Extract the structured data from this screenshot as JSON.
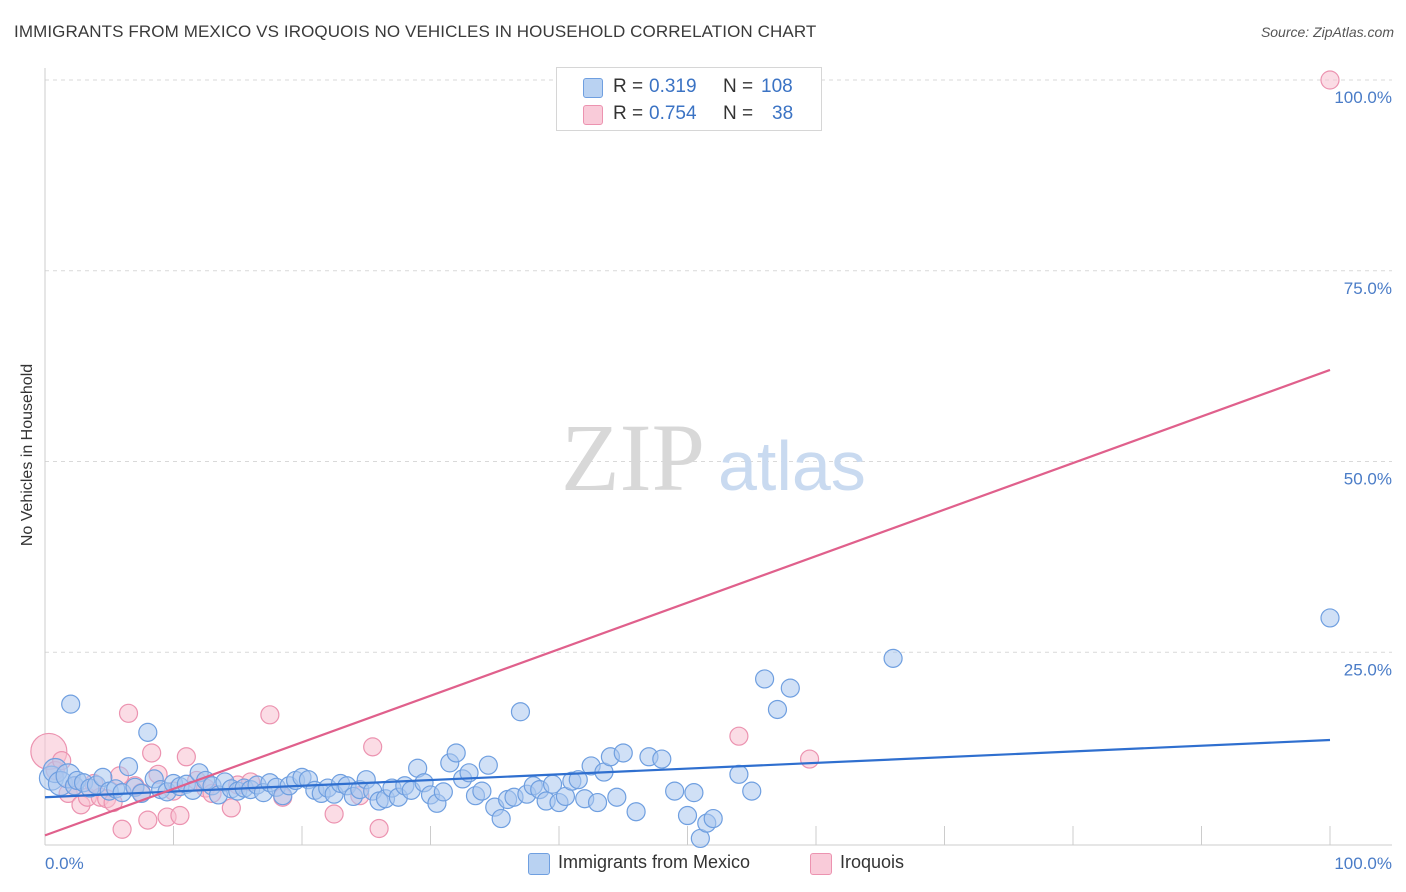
{
  "title": "IMMIGRANTS FROM MEXICO VS IROQUOIS NO VEHICLES IN HOUSEHOLD CORRELATION CHART",
  "source": "Source: ZipAtlas.com",
  "watermark": {
    "zip": "ZIP",
    "atlas": "atlas"
  },
  "colors": {
    "blue_fill": "#a9c6ee",
    "blue_stroke": "#6f9fe0",
    "blue_line": "#2f6fcf",
    "pink_fill": "#f7bfd0",
    "pink_stroke": "#ec93b0",
    "pink_line": "#e0608c",
    "axis_text": "#4a7cc7",
    "grid": "#d9d9d9"
  },
  "legend": {
    "rows": [
      {
        "r_label": "R =",
        "r_value": "0.319",
        "n_label": "N =",
        "n_value": "108"
      },
      {
        "r_label": "R =",
        "r_value": "0.754",
        "n_label": "N =",
        "n_value": "38"
      }
    ]
  },
  "bottom_legend": {
    "series_a": "Immigrants from Mexico",
    "series_b": "Iroquois"
  },
  "chart_data": {
    "type": "scatter",
    "title": "IMMIGRANTS FROM MEXICO VS IROQUOIS NO VEHICLES IN HOUSEHOLD CORRELATION CHART",
    "xlabel": "",
    "ylabel": "No Vehicles in Household",
    "xlim": [
      0,
      100
    ],
    "ylim": [
      0,
      100
    ],
    "x_tick_labels": [
      "0.0%",
      "100.0%"
    ],
    "y_tick_labels": [
      "100.0%",
      "75.0%",
      "50.0%",
      "25.0%"
    ],
    "y_tick_values": [
      100,
      75,
      50,
      25
    ],
    "series": [
      {
        "name": "Immigrants from Mexico",
        "r": 0.319,
        "n": 108,
        "trend": {
          "x": [
            0,
            100
          ],
          "y": [
            6.0,
            13.5
          ]
        },
        "points": [
          [
            0.5,
            8.5
          ],
          [
            0.8,
            9.5
          ],
          [
            1.2,
            7.8
          ],
          [
            1.8,
            8.8
          ],
          [
            2.0,
            18.2
          ],
          [
            2.3,
            7.5
          ],
          [
            2.5,
            8.2
          ],
          [
            3.0,
            7.9
          ],
          [
            3.5,
            7.2
          ],
          [
            4.0,
            7.6
          ],
          [
            4.5,
            8.6
          ],
          [
            5.0,
            6.8
          ],
          [
            5.5,
            7.1
          ],
          [
            6.0,
            6.6
          ],
          [
            6.5,
            10.0
          ],
          [
            7.0,
            7.3
          ],
          [
            7.5,
            6.5
          ],
          [
            8.0,
            14.5
          ],
          [
            8.5,
            8.4
          ],
          [
            9.0,
            7.0
          ],
          [
            9.5,
            6.7
          ],
          [
            10.0,
            7.8
          ],
          [
            10.5,
            7.4
          ],
          [
            11.0,
            7.7
          ],
          [
            11.5,
            6.9
          ],
          [
            12.0,
            9.2
          ],
          [
            12.5,
            8.2
          ],
          [
            13.0,
            7.5
          ],
          [
            13.5,
            6.3
          ],
          [
            14.0,
            8.0
          ],
          [
            14.5,
            7.1
          ],
          [
            15.0,
            6.8
          ],
          [
            15.5,
            7.2
          ],
          [
            16.0,
            7.0
          ],
          [
            16.5,
            7.6
          ],
          [
            17.0,
            6.6
          ],
          [
            17.5,
            7.9
          ],
          [
            18.0,
            7.3
          ],
          [
            18.5,
            6.2
          ],
          [
            19.0,
            7.5
          ],
          [
            19.5,
            8.2
          ],
          [
            20.0,
            8.6
          ],
          [
            20.5,
            8.3
          ],
          [
            21.0,
            6.9
          ],
          [
            21.5,
            6.5
          ],
          [
            22.0,
            7.2
          ],
          [
            22.5,
            6.4
          ],
          [
            23.0,
            7.8
          ],
          [
            23.5,
            7.5
          ],
          [
            24.0,
            6.1
          ],
          [
            24.5,
            7.0
          ],
          [
            25.0,
            8.3
          ],
          [
            25.5,
            6.8
          ],
          [
            26.0,
            5.5
          ],
          [
            26.5,
            5.8
          ],
          [
            27.0,
            7.2
          ],
          [
            27.5,
            6.0
          ],
          [
            28.0,
            7.5
          ],
          [
            28.5,
            6.9
          ],
          [
            29.0,
            9.8
          ],
          [
            29.5,
            7.9
          ],
          [
            30.0,
            6.3
          ],
          [
            30.5,
            5.2
          ],
          [
            31.0,
            6.7
          ],
          [
            31.5,
            10.5
          ],
          [
            32.0,
            11.8
          ],
          [
            32.5,
            8.4
          ],
          [
            33.0,
            9.2
          ],
          [
            33.5,
            6.2
          ],
          [
            34.0,
            6.8
          ],
          [
            34.5,
            10.2
          ],
          [
            35.0,
            4.7
          ],
          [
            35.5,
            3.2
          ],
          [
            36.0,
            5.7
          ],
          [
            36.5,
            6.0
          ],
          [
            37.0,
            17.2
          ],
          [
            37.5,
            6.4
          ],
          [
            38.0,
            7.5
          ],
          [
            38.5,
            7.0
          ],
          [
            39.0,
            5.5
          ],
          [
            39.5,
            7.7
          ],
          [
            40.0,
            5.3
          ],
          [
            40.5,
            6.1
          ],
          [
            41.0,
            8.1
          ],
          [
            41.5,
            8.3
          ],
          [
            42.0,
            5.8
          ],
          [
            42.5,
            10.1
          ],
          [
            43.0,
            5.3
          ],
          [
            43.5,
            9.3
          ],
          [
            44.0,
            11.3
          ],
          [
            44.5,
            6.0
          ],
          [
            45.0,
            11.8
          ],
          [
            46.0,
            4.1
          ],
          [
            47.0,
            11.3
          ],
          [
            48.0,
            11.0
          ],
          [
            49.0,
            6.8
          ],
          [
            50.0,
            3.6
          ],
          [
            50.5,
            6.6
          ],
          [
            51.0,
            0.6
          ],
          [
            51.5,
            2.6
          ],
          [
            52.0,
            3.2
          ],
          [
            54.0,
            9.0
          ],
          [
            55.0,
            6.8
          ],
          [
            56.0,
            21.5
          ],
          [
            57.0,
            17.5
          ],
          [
            58.0,
            20.3
          ],
          [
            66.0,
            24.2
          ],
          [
            100.0,
            29.5
          ]
        ]
      },
      {
        "name": "Iroquois",
        "r": 0.754,
        "n": 38,
        "trend": {
          "x": [
            0,
            100
          ],
          "y": [
            1.0,
            62.0
          ]
        },
        "points": [
          [
            0.3,
            12.0
          ],
          [
            0.8,
            9.5
          ],
          [
            1.3,
            10.8
          ],
          [
            1.8,
            6.5
          ],
          [
            2.3,
            7.5
          ],
          [
            2.8,
            5.0
          ],
          [
            3.3,
            6.0
          ],
          [
            3.8,
            7.8
          ],
          [
            4.3,
            6.0
          ],
          [
            4.8,
            5.8
          ],
          [
            5.3,
            5.3
          ],
          [
            5.8,
            8.8
          ],
          [
            6.0,
            1.8
          ],
          [
            6.5,
            17.0
          ],
          [
            7.0,
            7.5
          ],
          [
            7.5,
            6.6
          ],
          [
            8.0,
            3.0
          ],
          [
            8.3,
            11.8
          ],
          [
            8.8,
            9.0
          ],
          [
            9.5,
            3.4
          ],
          [
            10.0,
            6.8
          ],
          [
            10.5,
            3.6
          ],
          [
            11.0,
            11.3
          ],
          [
            11.8,
            8.2
          ],
          [
            12.5,
            7.2
          ],
          [
            13.0,
            6.5
          ],
          [
            14.5,
            4.6
          ],
          [
            15.0,
            7.6
          ],
          [
            16.0,
            8.0
          ],
          [
            17.5,
            16.8
          ],
          [
            18.5,
            6.0
          ],
          [
            22.5,
            3.8
          ],
          [
            24.5,
            6.2
          ],
          [
            25.5,
            12.6
          ],
          [
            26.0,
            1.9
          ],
          [
            54.0,
            14.0
          ],
          [
            59.5,
            11.0
          ],
          [
            100.0,
            100.0
          ]
        ]
      }
    ]
  }
}
